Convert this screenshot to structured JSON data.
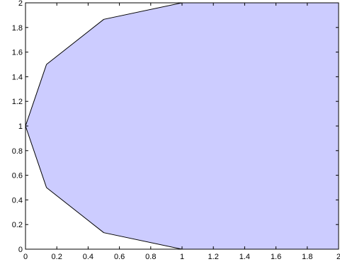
{
  "chart_data": {
    "type": "area",
    "title": "",
    "xlabel": "",
    "ylabel": "",
    "xlim": [
      0,
      2
    ],
    "ylim": [
      0,
      2
    ],
    "grid": false,
    "x_ticks": [
      "0",
      "0.2",
      "0.4",
      "0.6",
      "0.8",
      "1",
      "1.2",
      "1.4",
      "1.6",
      "1.8",
      "2"
    ],
    "y_ticks": [
      "0",
      "0.2",
      "0.4",
      "0.6",
      "0.8",
      "1",
      "1.2",
      "1.4",
      "1.6",
      "1.8",
      "2"
    ],
    "series": [
      {
        "fill": "#ccccff",
        "stroke": "#000000",
        "points": [
          {
            "x": 1.0,
            "y": 2.0
          },
          {
            "x": 0.5,
            "y": 1.866
          },
          {
            "x": 0.134,
            "y": 1.5
          },
          {
            "x": 0.0,
            "y": 1.0
          },
          {
            "x": 0.134,
            "y": 0.5
          },
          {
            "x": 0.5,
            "y": 0.134
          },
          {
            "x": 1.0,
            "y": 0.0
          },
          {
            "x": 2.0,
            "y": 0.0
          },
          {
            "x": 2.0,
            "y": 2.0
          }
        ]
      }
    ]
  }
}
